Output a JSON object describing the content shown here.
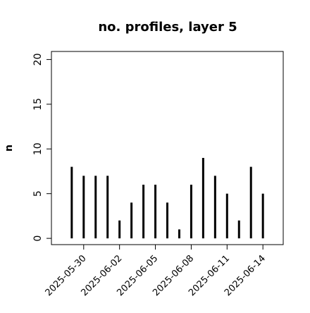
{
  "chart_data": {
    "type": "bar",
    "title": "no. profiles, layer 5",
    "y_label": "n",
    "x": [
      "2025-05-29",
      "2025-05-30",
      "2025-05-31",
      "2025-06-01",
      "2025-06-02",
      "2025-06-03",
      "2025-06-04",
      "2025-06-05",
      "2025-06-06",
      "2025-06-07",
      "2025-06-08",
      "2025-06-09",
      "2025-06-10",
      "2025-06-11",
      "2025-06-12",
      "2025-06-13",
      "2025-06-14"
    ],
    "values": [
      8,
      7,
      7,
      7,
      2,
      4,
      6,
      6,
      4,
      1,
      6,
      9,
      7,
      5,
      2,
      8,
      5
    ],
    "color": "#000000",
    "ylim": [
      -0.7,
      20.9
    ],
    "yticks": [
      0,
      5,
      10,
      15,
      20
    ],
    "xticks": [
      "2025-05-30",
      "2025-06-02",
      "2025-06-05",
      "2025-06-08",
      "2025-06-11",
      "2025-06-14"
    ],
    "xtick_colors": [
      "#000000",
      "#000000",
      "#228b22",
      "#000000",
      "#000000",
      "#000000"
    ]
  }
}
